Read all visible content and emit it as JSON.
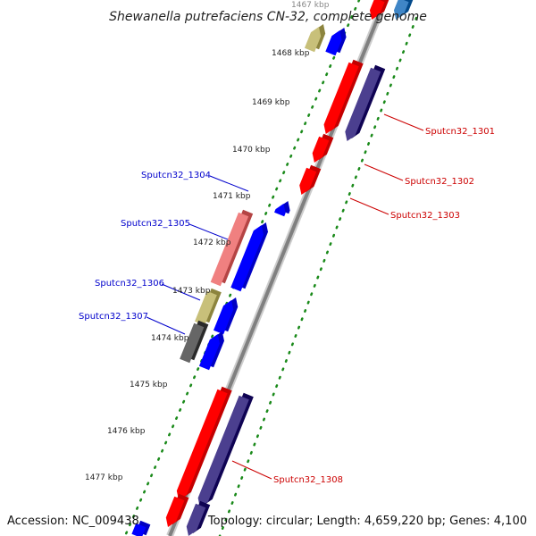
{
  "title": "Shewanella putrefaciens CN-32, complete genome",
  "footer": {
    "accession": "Accession: NC_009438",
    "summary": "Topology: circular; Length: 4,659,220 bp; Genes: 4,100"
  },
  "ticks": [
    "1467 kbp",
    "1468 kbp",
    "1469 kbp",
    "1470 kbp",
    "1471 kbp",
    "1472 kbp",
    "1473 kbp",
    "1474 kbp",
    "1475 kbp",
    "1476 kbp",
    "1477 kbp"
  ],
  "gene_labels": {
    "g1301": "Sputcn32_1301",
    "g1302": "Sputcn32_1302",
    "g1303": "Sputcn32_1303",
    "g1304": "Sputcn32_1304",
    "g1305": "Sputcn32_1305",
    "g1306": "Sputcn32_1306",
    "g1307": "Sputcn32_1307",
    "g1308": "Sputcn32_1308"
  },
  "colors": {
    "red": "#ff0000",
    "blue": "#0000ff",
    "purple": "#4b3f8f",
    "khaki": "#c8c07a",
    "gray": "#666666",
    "pink": "#f08080",
    "steelblue": "#3f86c7",
    "backbone": "#8a8a8a",
    "dots": "#1a8a1a",
    "label_red": "#cc0000",
    "label_blue": "#0000cc"
  }
}
